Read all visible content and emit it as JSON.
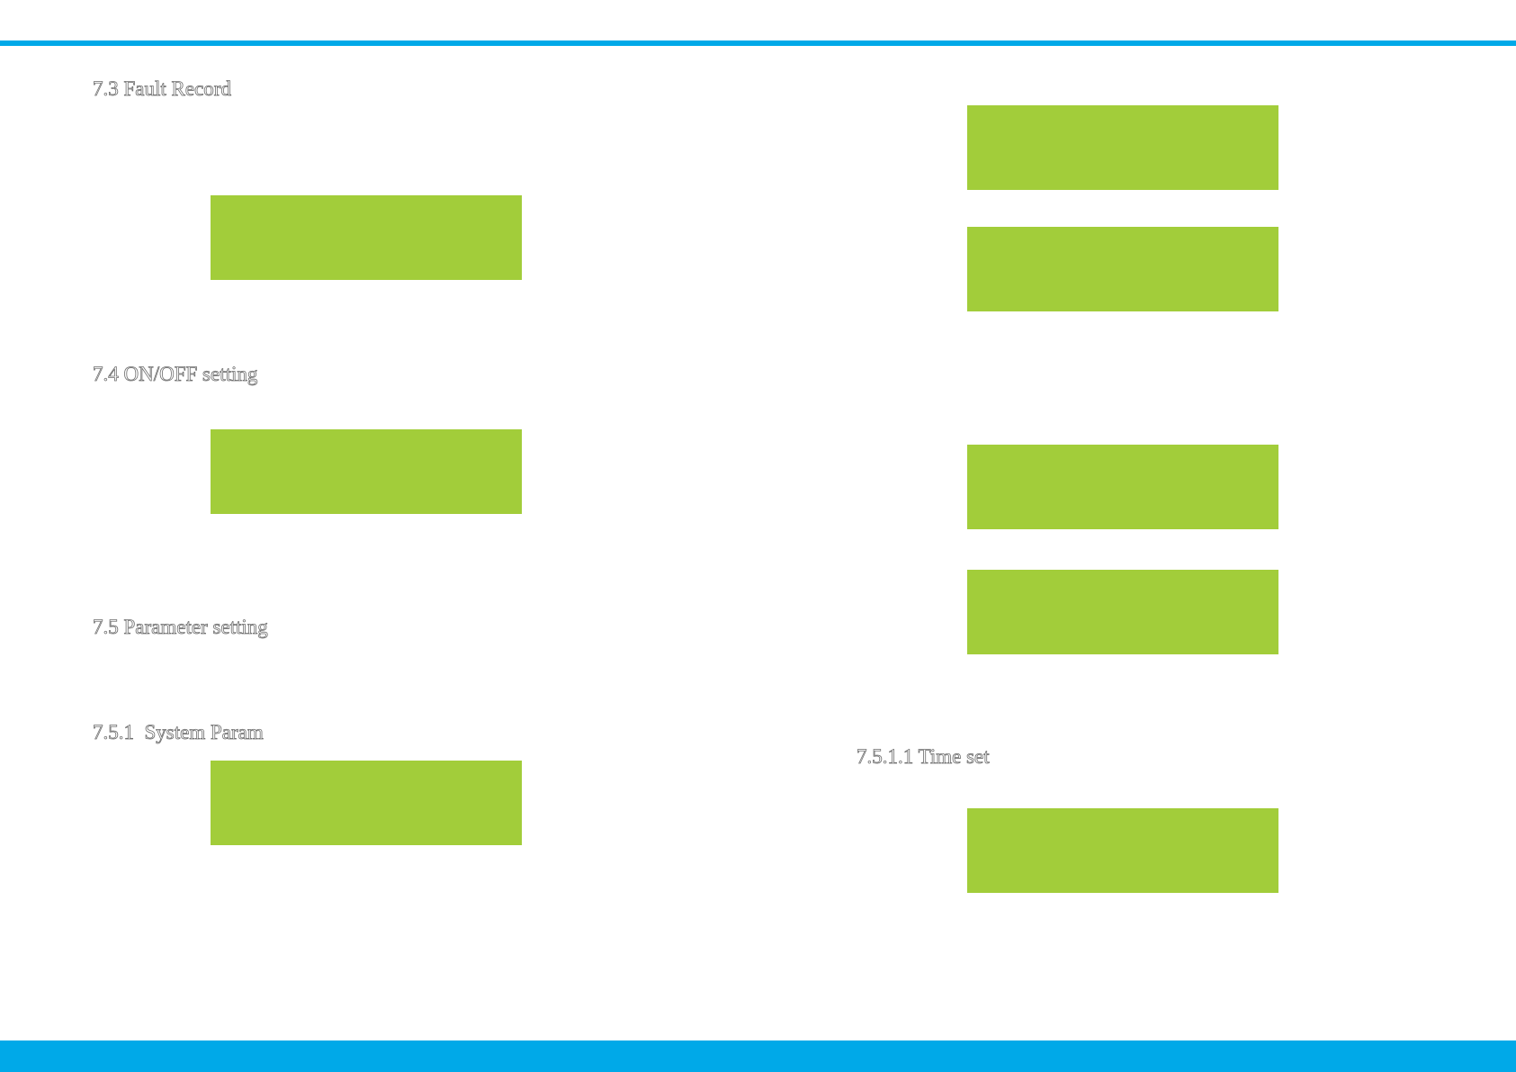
{
  "page": {
    "accent_color": "#00a9e8",
    "lcd_color": "#a2cd3a"
  },
  "headings": {
    "fault_record": "7.3 Fault Record",
    "on_off_setting": "7.4 ON/OFF setting",
    "parameter_setting": "7.5 Parameter setting",
    "system_param": "7.5.1  System Param",
    "time_set": "7.5.1.1 Time set"
  }
}
